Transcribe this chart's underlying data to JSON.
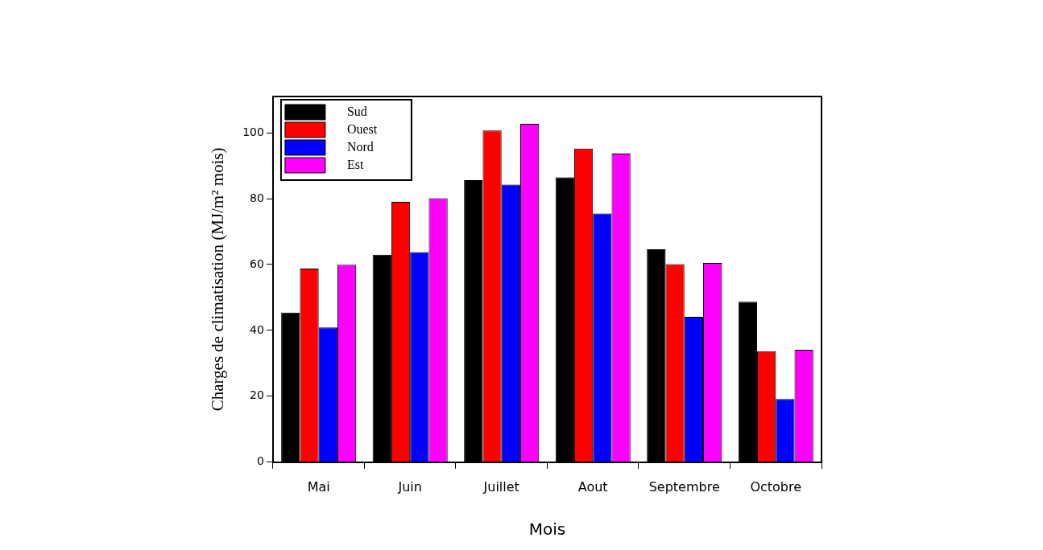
{
  "chart_data": {
    "type": "bar",
    "xlabel": "Mois",
    "ylabel": "Charges de climatisation (MJ/m² mois)",
    "categories": [
      "Mai",
      "Juin",
      "Juillet",
      "Aout",
      "Septembre",
      "Octobre"
    ],
    "series": [
      {
        "name": "Sud",
        "color": "#000000",
        "values": [
          45.4,
          63,
          85.6,
          86.5,
          64.6,
          48.7
        ]
      },
      {
        "name": "Ouest",
        "color": "#ff0000",
        "values": [
          58.8,
          79,
          100.7,
          95.2,
          60.1,
          33.7
        ]
      },
      {
        "name": "Nord",
        "color": "#0000ff",
        "values": [
          40.9,
          63.8,
          84.3,
          75.5,
          44.1,
          19.2
        ]
      },
      {
        "name": "Est",
        "color": "#ff00ff",
        "values": [
          59.9,
          80.1,
          102.7,
          93.7,
          60.5,
          34.1
        ]
      }
    ],
    "ylim": [
      0,
      111
    ],
    "yticks": [
      0,
      20,
      40,
      60,
      80,
      100
    ],
    "grid": false,
    "legend": "top left"
  }
}
